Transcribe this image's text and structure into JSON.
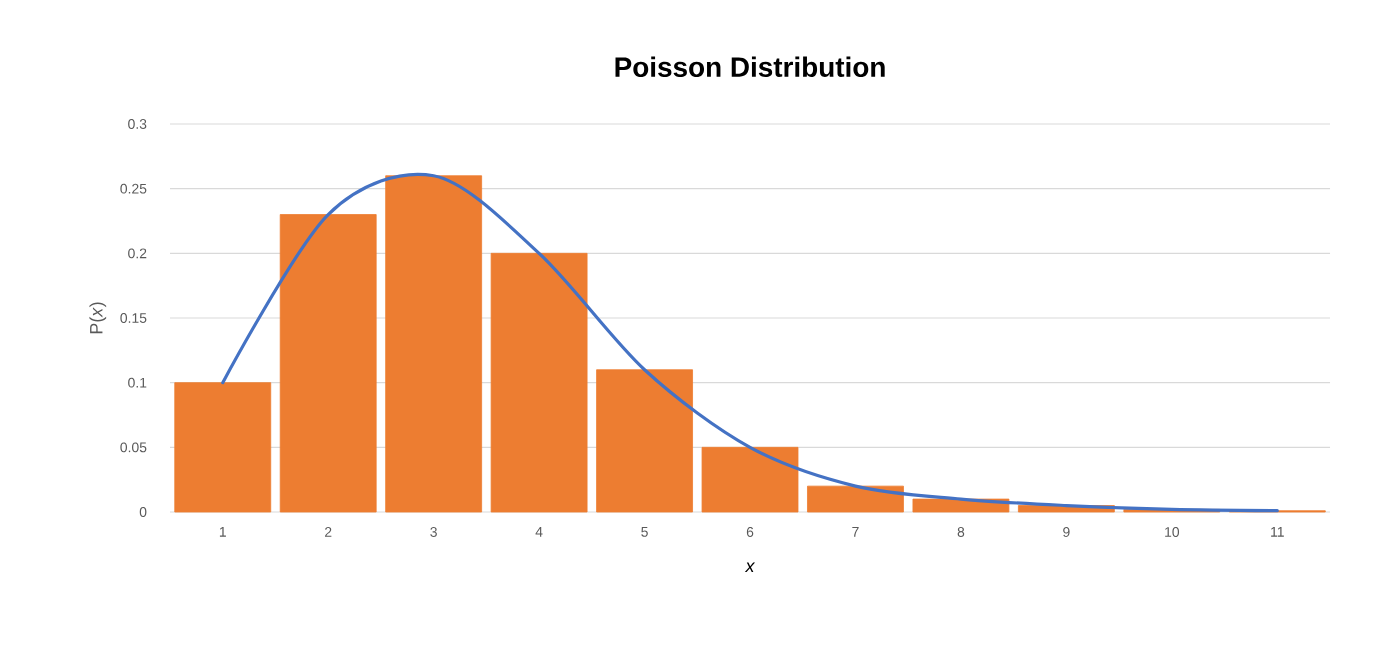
{
  "chart_data": {
    "type": "bar",
    "title": "Poisson Distribution",
    "xlabel": "x",
    "ylabel": "P(*x*)",
    "categories": [
      "1",
      "2",
      "3",
      "4",
      "5",
      "6",
      "7",
      "8",
      "9",
      "10",
      "11"
    ],
    "series": [
      {
        "color": "#ed7d31",
        "values": [
          0.1,
          0.23,
          0.26,
          0.2,
          0.11,
          0.05,
          0.02,
          0.01,
          0.005,
          0.002,
          0.001
        ]
      },
      {
        "type": "line",
        "color": "#4472c4",
        "values": [
          0.1,
          0.23,
          0.26,
          0.2,
          0.11,
          0.05,
          0.02,
          0.01,
          0.005,
          0.002,
          0.001
        ]
      }
    ],
    "ylim": [
      0,
      0.3
    ],
    "yticks": [
      0,
      0.05,
      0.1,
      0.15,
      0.2,
      0.25,
      0.3
    ],
    "grid": "y",
    "marker": "none",
    "line_style": "solid"
  }
}
